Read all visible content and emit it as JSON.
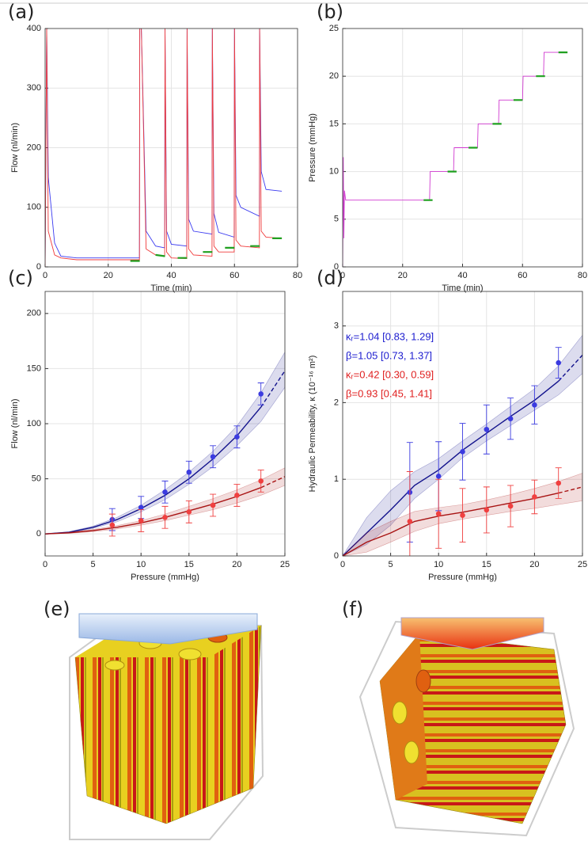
{
  "chart_data": [
    {
      "type": "line",
      "label": "(a)",
      "xlabel": "Time (min)",
      "ylabel": "Flow (nl/min)",
      "xlim": [
        0,
        80
      ],
      "ylim": [
        0,
        400
      ],
      "xticks": [
        0,
        20,
        40,
        60,
        80
      ],
      "yticks": [
        0,
        100,
        200,
        300,
        400
      ],
      "grid": true,
      "series": [
        {
          "color": "#3a3af0",
          "x": [
            0,
            0.5,
            1,
            3,
            5,
            10,
            20,
            29.9,
            30,
            30.5,
            32,
            35,
            37.9,
            38,
            38.5,
            40,
            44.9,
            45,
            45.5,
            47,
            52.9,
            53,
            53.5,
            55,
            59.9,
            60,
            60.5,
            62,
            67.9,
            68,
            68.5,
            70,
            75
          ],
          "values": [
            0,
            400,
            150,
            40,
            18,
            15,
            15,
            15,
            400,
            400,
            60,
            35,
            32,
            400,
            60,
            38,
            35,
            400,
            80,
            60,
            55,
            400,
            90,
            58,
            50,
            400,
            120,
            100,
            85,
            400,
            160,
            130,
            127
          ]
        },
        {
          "color": "#f03c3c",
          "x": [
            0,
            0.5,
            1,
            3,
            5,
            10,
            20,
            29.9,
            30,
            30.5,
            32,
            35,
            37.9,
            38,
            38.5,
            40,
            44.9,
            45,
            45.5,
            47,
            52.9,
            53,
            53.5,
            55,
            59.9,
            60,
            60.5,
            62,
            67.9,
            68,
            68.5,
            70,
            75
          ],
          "values": [
            0,
            400,
            60,
            20,
            15,
            12,
            12,
            12,
            400,
            400,
            30,
            20,
            18,
            400,
            25,
            15,
            14,
            400,
            30,
            20,
            18,
            400,
            35,
            25,
            25,
            400,
            45,
            35,
            32,
            400,
            60,
            50,
            48
          ]
        },
        {
          "color": "#1fa01f",
          "x": [
            27,
            30,
            30.1,
            35,
            38,
            38.1,
            42,
            45,
            45.1,
            50,
            53,
            53.1,
            57,
            60,
            60.1,
            65,
            68,
            68.1,
            72,
            75
          ],
          "values": [
            10,
            10,
            null,
            20,
            18,
            null,
            15,
            15,
            null,
            25,
            25,
            null,
            32,
            32,
            null,
            35,
            35,
            null,
            48,
            48
          ]
        }
      ]
    },
    {
      "type": "line",
      "label": "(b)",
      "xlabel": "Time (min)",
      "ylabel": "Pressure (mmHg)",
      "xlim": [
        0,
        80
      ],
      "ylim": [
        0,
        25
      ],
      "xticks": [
        0,
        20,
        40,
        60,
        80
      ],
      "yticks": [
        0,
        5,
        10,
        15,
        20,
        25
      ],
      "grid": true,
      "series": [
        {
          "color": "#d03ad0",
          "x": [
            0,
            0.2,
            0.4,
            0.6,
            1,
            29,
            29.2,
            37,
            37.2,
            45,
            45.2,
            52,
            52.2,
            60,
            60.2,
            67,
            67.2,
            75
          ],
          "values": [
            0,
            11.5,
            3,
            8,
            7,
            7,
            10,
            10,
            12.5,
            12.5,
            15,
            15,
            17.5,
            17.5,
            20,
            20,
            22.5,
            22.5
          ]
        },
        {
          "color": "#1fa01f",
          "x": [
            27,
            30,
            30.1,
            35,
            38,
            38.1,
            42,
            45,
            45.1,
            50,
            53,
            53.1,
            57,
            60,
            60.1,
            64.5,
            67.5,
            67.6,
            72,
            75
          ],
          "values": [
            7,
            7,
            null,
            10,
            10,
            null,
            12.5,
            12.5,
            null,
            15,
            15,
            null,
            17.5,
            17.5,
            null,
            20,
            20,
            null,
            22.5,
            22.5
          ]
        }
      ]
    },
    {
      "type": "scatter",
      "label": "(c)",
      "xlabel": "Pressure (mmHg)",
      "ylabel": "Flow (nl/min)",
      "xlim": [
        0,
        25
      ],
      "ylim": [
        -20,
        220
      ],
      "xticks": [
        0,
        5,
        10,
        15,
        20,
        25
      ],
      "yticks": [
        0,
        50,
        100,
        150,
        200
      ],
      "grid": true,
      "x": [
        7,
        10,
        12.5,
        15,
        17.5,
        20,
        22.5
      ],
      "series": [
        {
          "color": "#3b3be0",
          "values": [
            13,
            24,
            38,
            56,
            70,
            88,
            127
          ],
          "errors": [
            10,
            10,
            10,
            10,
            10,
            10,
            10
          ]
        },
        {
          "color": "#f04040",
          "values": [
            8,
            12,
            15,
            20,
            26,
            35,
            48
          ],
          "errors": [
            10,
            10,
            10,
            10,
            10,
            10,
            10
          ]
        }
      ],
      "fits": {
        "x": [
          0,
          2.5,
          5,
          7.5,
          10,
          12.5,
          15,
          17.5,
          20,
          22.5,
          25
        ],
        "series": [
          {
            "color": "#12128c",
            "values": [
              0,
              1.5,
              6,
              13,
              23,
              35,
              50,
              68,
              89,
              115,
              148
            ],
            "lower": [
              0,
              1,
              5,
              11,
              20,
              31,
              45,
              61,
              80,
              102,
              133
            ],
            "upper": [
              0,
              2,
              7,
              15,
              26,
              40,
              56,
              75,
              98,
              128,
              165
            ]
          },
          {
            "color": "#a81414",
            "values": [
              0,
              1,
              3,
              6,
              10,
              15,
              21,
              27,
              34,
              42,
              52
            ],
            "lower": [
              0,
              0.5,
              2,
              4.5,
              8,
              12,
              17,
              22,
              28,
              35,
              44
            ],
            "upper": [
              0,
              1.5,
              4,
              7.5,
              12,
              18,
              25,
              32,
              40,
              49,
              60
            ]
          }
        ]
      }
    },
    {
      "type": "scatter",
      "label": "(d)",
      "xlabel": "Pressure (mmHg)",
      "ylabel": "Hydraulic Permeability, κ (10⁻¹⁶ m²)",
      "xlim": [
        0,
        25
      ],
      "ylim": [
        0,
        3.45
      ],
      "xticks": [
        0,
        5,
        10,
        15,
        20,
        25
      ],
      "yticks": [
        0,
        1,
        2,
        3
      ],
      "grid": true,
      "x": [
        7,
        10,
        12.5,
        15,
        17.5,
        20,
        22.5
      ],
      "series": [
        {
          "color": "#3b3be0",
          "values": [
            0.83,
            1.04,
            1.36,
            1.65,
            1.79,
            1.97,
            2.52
          ],
          "errors": [
            0.65,
            0.45,
            0.37,
            0.32,
            0.27,
            0.25,
            0.2
          ]
        },
        {
          "color": "#f04040",
          "values": [
            0.45,
            0.55,
            0.53,
            0.6,
            0.65,
            0.77,
            0.95
          ],
          "errors": [
            0.65,
            0.45,
            0.35,
            0.3,
            0.27,
            0.22,
            0.2
          ]
        }
      ],
      "fits": {
        "x": [
          0,
          2.5,
          5,
          7.5,
          10,
          12.5,
          15,
          17.5,
          20,
          22.5,
          25
        ],
        "series": [
          {
            "color": "#12128c",
            "values": [
              0,
              0.3,
              0.6,
              0.92,
              1.12,
              1.38,
              1.6,
              1.82,
              2.03,
              2.28,
              2.62
            ],
            "lower": [
              0,
              0.15,
              0.4,
              0.75,
              1.0,
              1.28,
              1.5,
              1.7,
              1.9,
              2.1,
              2.38
            ],
            "upper": [
              0,
              0.5,
              0.85,
              1.1,
              1.27,
              1.5,
              1.72,
              1.95,
              2.18,
              2.48,
              2.88
            ]
          },
          {
            "color": "#a81414",
            "values": [
              0,
              0.18,
              0.3,
              0.45,
              0.52,
              0.57,
              0.63,
              0.69,
              0.75,
              0.82,
              0.9
            ],
            "lower": [
              0,
              0.05,
              0.18,
              0.32,
              0.42,
              0.48,
              0.53,
              0.58,
              0.62,
              0.67,
              0.72
            ],
            "upper": [
              0,
              0.3,
              0.45,
              0.58,
              0.63,
              0.67,
              0.73,
              0.8,
              0.88,
              0.97,
              1.08
            ]
          }
        ]
      },
      "annotations": [
        {
          "text": "κᵣ=1.04 [0.83, 1.29]",
          "color": "#2020d0"
        },
        {
          "text": "β=1.05 [0.73, 1.37]",
          "color": "#2020d0"
        },
        {
          "text": "κᵣ=0.42 [0.30, 0.59]",
          "color": "#e02020"
        },
        {
          "text": "β=0.93 [0.45, 1.41]",
          "color": "#e02020"
        }
      ]
    }
  ],
  "images": [
    {
      "label": "(e)"
    },
    {
      "label": "(f)"
    }
  ]
}
